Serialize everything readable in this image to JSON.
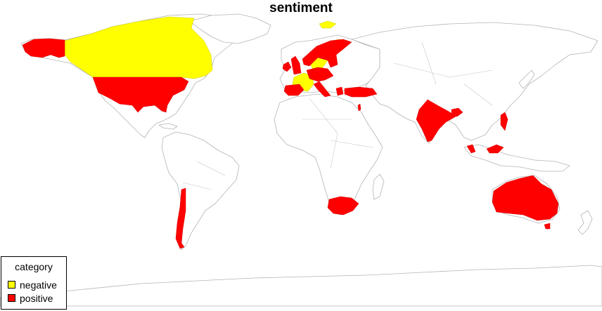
{
  "title": "sentiment",
  "legend": {
    "title": "category",
    "items": [
      {
        "label": "negative",
        "color": "#ffff00"
      },
      {
        "label": "positive",
        "color": "#ff0000"
      }
    ]
  },
  "map_data": {
    "variable": "sentiment",
    "categories": [
      "negative",
      "positive"
    ],
    "countries": [
      {
        "name": "Canada",
        "category": "negative"
      },
      {
        "name": "Sweden",
        "category": "negative"
      },
      {
        "name": "France",
        "category": "negative"
      },
      {
        "name": "United States",
        "category": "positive"
      },
      {
        "name": "Ireland",
        "category": "positive"
      },
      {
        "name": "United Kingdom",
        "category": "positive"
      },
      {
        "name": "Norway",
        "category": "positive"
      },
      {
        "name": "Finland",
        "category": "positive"
      },
      {
        "name": "Germany",
        "category": "positive"
      },
      {
        "name": "Netherlands",
        "category": "positive"
      },
      {
        "name": "Belgium",
        "category": "positive"
      },
      {
        "name": "Denmark",
        "category": "positive"
      },
      {
        "name": "Poland",
        "category": "positive"
      },
      {
        "name": "Spain",
        "category": "positive"
      },
      {
        "name": "Portugal",
        "category": "positive"
      },
      {
        "name": "Italy",
        "category": "positive"
      },
      {
        "name": "Austria",
        "category": "positive"
      },
      {
        "name": "Switzerland",
        "category": "positive"
      },
      {
        "name": "Greece",
        "category": "positive"
      },
      {
        "name": "Turkey",
        "category": "positive"
      },
      {
        "name": "Israel",
        "category": "positive"
      },
      {
        "name": "India",
        "category": "positive"
      },
      {
        "name": "Bangladesh",
        "category": "positive"
      },
      {
        "name": "Philippines",
        "category": "positive"
      },
      {
        "name": "Malaysia",
        "category": "positive"
      },
      {
        "name": "South Africa",
        "category": "positive"
      },
      {
        "name": "Chile",
        "category": "positive"
      },
      {
        "name": "Australia",
        "category": "positive"
      }
    ]
  }
}
